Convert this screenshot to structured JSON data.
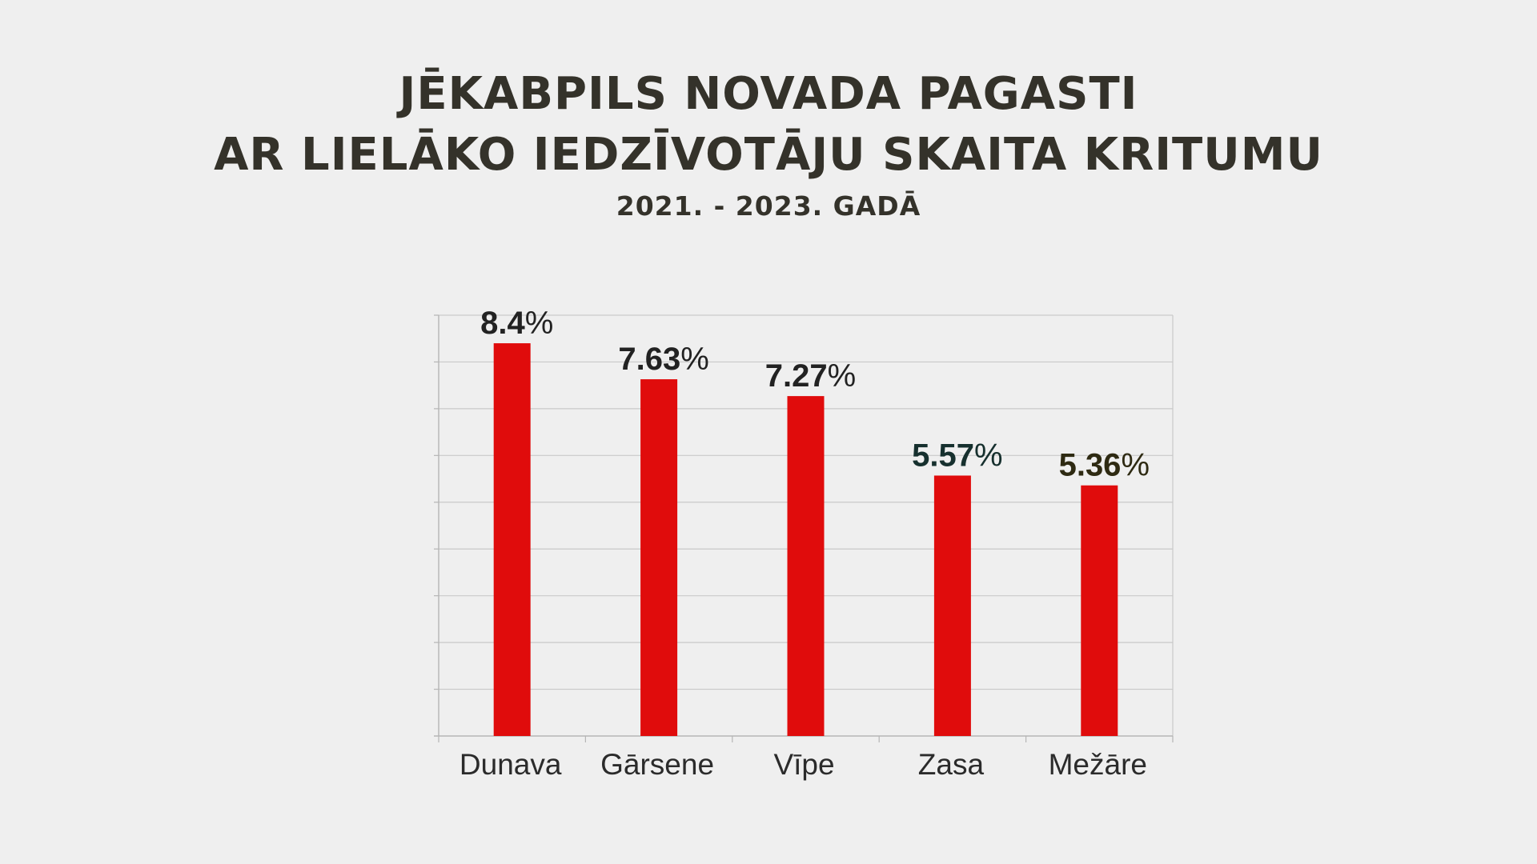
{
  "header": {
    "title_line1": "JĒKABPILS NOVADA PAGASTI",
    "title_line2": "AR LIELĀKO IEDZĪVOTĀJU SKAITA KRITUMU",
    "subtitle": "2021. - 2023. GADĀ"
  },
  "chart_data": {
    "type": "bar",
    "title": "JĒKABPILS NOVADA PAGASTI AR LIELĀKO IEDZĪVOTĀJU SKAITA KRITUMU",
    "subtitle": "2021. - 2023. GADĀ",
    "categories": [
      "Dunava",
      "Gārsene",
      "Vīpe",
      "Zasa",
      "Mežāre"
    ],
    "values": [
      8.4,
      7.63,
      7.27,
      5.57,
      5.36
    ],
    "value_labels": [
      "8.4%",
      "7.63%",
      "7.27%",
      "5.57%",
      "5.36%"
    ],
    "label_colors": [
      "#222222",
      "#222222",
      "#222222",
      "#16302e",
      "#2e2a12"
    ],
    "xlabel": "",
    "ylabel": "",
    "ylim": [
      0,
      9
    ],
    "grid": true,
    "legend": "none",
    "bar_color": "#e00c0c",
    "grid_color": "#c9c9c9"
  }
}
